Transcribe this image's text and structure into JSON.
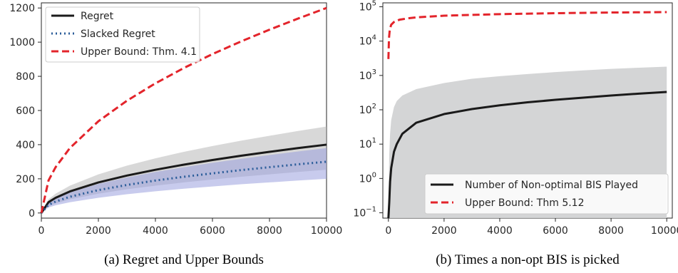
{
  "chart_data": [
    {
      "type": "line",
      "caption": "(a) Regret and Upper Bounds",
      "xlim": [
        0,
        10000
      ],
      "ylim": [
        -30,
        1230
      ],
      "x_ticks": [
        0,
        2000,
        4000,
        6000,
        8000,
        10000
      ],
      "x_tick_labels": [
        "0",
        "2000",
        "4000",
        "6000",
        "8000",
        "10000"
      ],
      "y_ticks": [
        0,
        200,
        400,
        600,
        800,
        1000,
        1200
      ],
      "y_tick_labels": [
        "0",
        "200",
        "400",
        "600",
        "800",
        "1000",
        "1200"
      ],
      "legend_position": "upper-left",
      "series": [
        {
          "name": "Regret",
          "style": "solid",
          "color": "#1a1a1a",
          "x": [
            0,
            250,
            500,
            1000,
            2000,
            3000,
            4000,
            5000,
            6000,
            7000,
            8000,
            9000,
            10000
          ],
          "values": [
            0,
            63,
            89,
            126,
            179,
            219,
            253,
            283,
            310,
            335,
            358,
            380,
            400
          ],
          "band_upper": [
            0,
            80,
            113,
            160,
            226,
            277,
            320,
            358,
            392,
            423,
            452,
            480,
            506
          ],
          "band_lower": [
            0,
            40,
            56,
            80,
            113,
            139,
            160,
            179,
            196,
            212,
            226,
            240,
            253
          ],
          "band_color": "#b8b8b8"
        },
        {
          "name": "Slacked Regret",
          "style": "dotted",
          "color": "#2b5d9a",
          "x": [
            0,
            250,
            500,
            1000,
            2000,
            3000,
            4000,
            5000,
            6000,
            7000,
            8000,
            9000,
            10000
          ],
          "values": [
            0,
            47,
            67,
            95,
            134,
            164,
            190,
            212,
            232,
            251,
            268,
            285,
            300
          ],
          "band_upper": [
            0,
            60,
            85,
            120,
            170,
            208,
            240,
            268,
            294,
            317,
            339,
            360,
            380
          ],
          "band_lower": [
            0,
            32,
            45,
            63,
            89,
            110,
            127,
            142,
            155,
            168,
            179,
            190,
            200
          ],
          "band_color": "#9aa0de"
        },
        {
          "name": "Upper Bound: Thm. 4.1",
          "style": "dashed",
          "color": "#e3242b",
          "x": [
            0,
            250,
            500,
            1000,
            2000,
            3000,
            4000,
            5000,
            6000,
            7000,
            8000,
            9000,
            10000
          ],
          "values": [
            0,
            190,
            268,
            380,
            537,
            657,
            759,
            849,
            930,
            1004,
            1073,
            1138,
            1200
          ]
        }
      ]
    },
    {
      "type": "line",
      "caption": "(b) Times a non-opt BIS is picked",
      "y_scale": "log",
      "xlim": [
        -200,
        10200
      ],
      "ylim": [
        0.07,
        130000
      ],
      "x_ticks": [
        0,
        2000,
        4000,
        6000,
        8000,
        10000
      ],
      "x_tick_labels": [
        "0",
        "2000",
        "4000",
        "6000",
        "8000",
        "10000"
      ],
      "y_ticks": [
        0.1,
        1,
        10,
        100,
        1000,
        10000,
        100000
      ],
      "y_tick_labels": [
        {
          "base": "10",
          "exp": "−1"
        },
        {
          "base": "10",
          "exp": "0"
        },
        {
          "base": "10",
          "exp": "1"
        },
        {
          "base": "10",
          "exp": "2"
        },
        {
          "base": "10",
          "exp": "3"
        },
        {
          "base": "10",
          "exp": "4"
        },
        {
          "base": "10",
          "exp": "5"
        }
      ],
      "legend_position": "lower-right",
      "series": [
        {
          "name": "Number of Non-optimal BIS Played",
          "style": "solid",
          "color": "#1a1a1a",
          "x": [
            0,
            30,
            60,
            100,
            200,
            300,
            500,
            1000,
            2000,
            3000,
            4000,
            5000,
            6000,
            7000,
            8000,
            9000,
            10000
          ],
          "values": [
            0.07,
            0.2,
            0.8,
            2,
            6,
            10,
            20,
            42,
            75,
            105,
            135,
            165,
            195,
            225,
            260,
            295,
            330
          ],
          "band_upper": [
            0.1,
            5,
            20,
            50,
            120,
            180,
            260,
            400,
            600,
            800,
            950,
            1100,
            1250,
            1400,
            1550,
            1680,
            1800
          ],
          "band_lower": [
            0.07,
            0.07,
            0.07,
            0.07,
            0.07,
            0.07,
            0.07,
            0.07,
            0.07,
            0.07,
            0.07,
            0.07,
            0.07,
            0.07,
            0.07,
            0.07,
            0.07
          ],
          "band_color": "#cfd0d2"
        },
        {
          "name": "Upper Bound: Thm 5.12",
          "style": "dashed",
          "color": "#e3242b",
          "x": [
            0,
            20,
            50,
            100,
            200,
            400,
            700,
            1000,
            2000,
            4000,
            6000,
            8000,
            10000
          ],
          "values": [
            3000,
            12000,
            22000,
            30000,
            36000,
            42000,
            46000,
            49000,
            55000,
            61000,
            65000,
            68000,
            70000
          ]
        }
      ]
    }
  ]
}
